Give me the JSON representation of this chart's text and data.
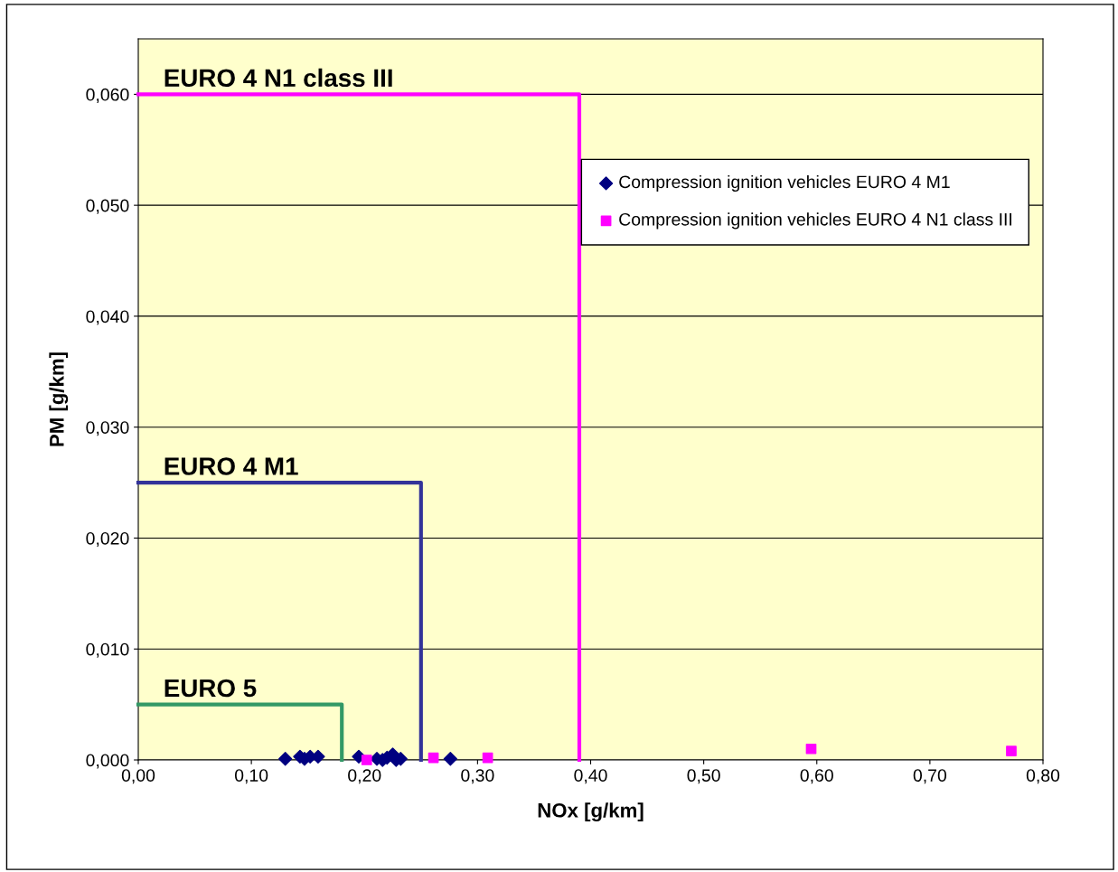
{
  "chart_data": {
    "type": "scatter",
    "xlabel": "NOx [g/km]",
    "ylabel": "PM [g/km]",
    "xlim": [
      0,
      0.8
    ],
    "ylim": [
      0,
      0.065
    ],
    "xticks": [
      {
        "value": 0,
        "label": "0,00"
      },
      {
        "value": 0.1,
        "label": "0,10"
      },
      {
        "value": 0.2,
        "label": "0,20"
      },
      {
        "value": 0.3,
        "label": "0,30"
      },
      {
        "value": 0.4,
        "label": "0,40"
      },
      {
        "value": 0.5,
        "label": "0,50"
      },
      {
        "value": 0.6,
        "label": "0,60"
      },
      {
        "value": 0.7,
        "label": "0,70"
      },
      {
        "value": 0.8,
        "label": "0,80"
      }
    ],
    "yticks": [
      {
        "value": 0,
        "label": "0,000"
      },
      {
        "value": 0.01,
        "label": "0,010"
      },
      {
        "value": 0.02,
        "label": "0,020"
      },
      {
        "value": 0.03,
        "label": "0,030"
      },
      {
        "value": 0.04,
        "label": "0,040"
      },
      {
        "value": 0.05,
        "label": "0,050"
      },
      {
        "value": 0.06,
        "label": "0,060"
      }
    ],
    "grid": "y",
    "legend": "top right",
    "series": [
      {
        "name": "Compression ignition vehicles EURO 4 M1",
        "color": "#000080",
        "marker": "diamond",
        "x": [
          0.13,
          0.143,
          0.147,
          0.152,
          0.159,
          0.195,
          0.211,
          0.216,
          0.22,
          0.225,
          0.228,
          0.232,
          0.276
        ],
        "values": [
          0.0001,
          0.0003,
          0.0001,
          0.0003,
          0.0003,
          0.0003,
          0.0001,
          0.0,
          0.0002,
          0.0005,
          0.0,
          0.0001,
          0.0001
        ]
      },
      {
        "name": "Compression ignition vehicles EURO 4 N1 class III",
        "color": "#ff00ff",
        "marker": "square",
        "x": [
          0.202,
          0.261,
          0.309,
          0.595,
          0.772
        ],
        "values": [
          0.0,
          0.0002,
          0.0002,
          0.001,
          0.0008
        ]
      },
      {
        "name": "EURO 5",
        "type": "line",
        "color": "#339966",
        "marker": "none",
        "x": [
          0,
          0.18,
          0.18
        ],
        "values": [
          0.005,
          0.005,
          0
        ]
      },
      {
        "name": "EURO 4 M1",
        "type": "line",
        "color": "#333399",
        "marker": "none",
        "x": [
          0,
          0.25,
          0.25
        ],
        "values": [
          0.025,
          0.025,
          0
        ]
      },
      {
        "name": "EURO 4 N1 class III",
        "type": "line",
        "color": "#ff00ff",
        "marker": "none",
        "x": [
          0,
          0.39,
          0.39
        ],
        "values": [
          0.06,
          0.06,
          0
        ]
      }
    ]
  }
}
